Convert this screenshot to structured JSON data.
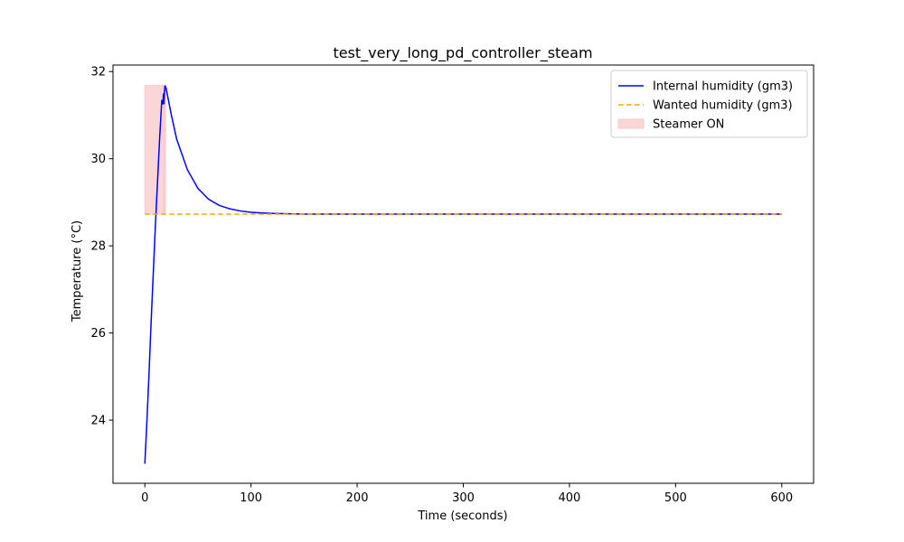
{
  "chart_data": {
    "type": "line",
    "title": "test_very_long_pd_controller_steam",
    "xlabel": "Time (seconds)",
    "ylabel": "Temperature (°C)",
    "xlim": [
      -30,
      630
    ],
    "ylim": [
      22.55,
      32.15
    ],
    "x_ticks": [
      0,
      100,
      200,
      300,
      400,
      500,
      600
    ],
    "y_ticks": [
      24,
      26,
      28,
      30,
      32
    ],
    "legend_position": "top-right",
    "series": [
      {
        "name": "Internal humidity (gm3)",
        "color": "#0000ff",
        "style": "solid",
        "x": [
          0,
          2,
          4,
          6,
          8,
          10,
          12,
          14,
          16,
          17,
          17.5,
          18,
          18.5,
          19,
          20,
          25,
          30,
          40,
          50,
          60,
          70,
          80,
          90,
          100,
          110,
          120,
          130,
          140,
          150,
          200,
          300,
          400,
          500,
          600
        ],
        "y": [
          23.0,
          24.0,
          25.1,
          26.3,
          27.4,
          28.5,
          29.5,
          30.5,
          31.35,
          31.25,
          31.5,
          31.25,
          31.55,
          31.68,
          31.62,
          31.0,
          30.45,
          29.75,
          29.32,
          29.07,
          28.93,
          28.85,
          28.8,
          28.77,
          28.755,
          28.745,
          28.74,
          28.735,
          28.73,
          28.73,
          28.73,
          28.73,
          28.73,
          28.73
        ]
      },
      {
        "name": "Wanted humidity (gm3)",
        "color": "#ffa500",
        "style": "dashed",
        "x": [
          0,
          600
        ],
        "y": [
          28.73,
          28.73
        ]
      }
    ],
    "shaded_regions": [
      {
        "name": "Steamer ON",
        "color": "#f8c8c8",
        "x_ranges": [
          [
            0,
            18
          ],
          [
            18,
            19.5
          ]
        ],
        "y_range": [
          28.73,
          31.68
        ]
      }
    ]
  }
}
